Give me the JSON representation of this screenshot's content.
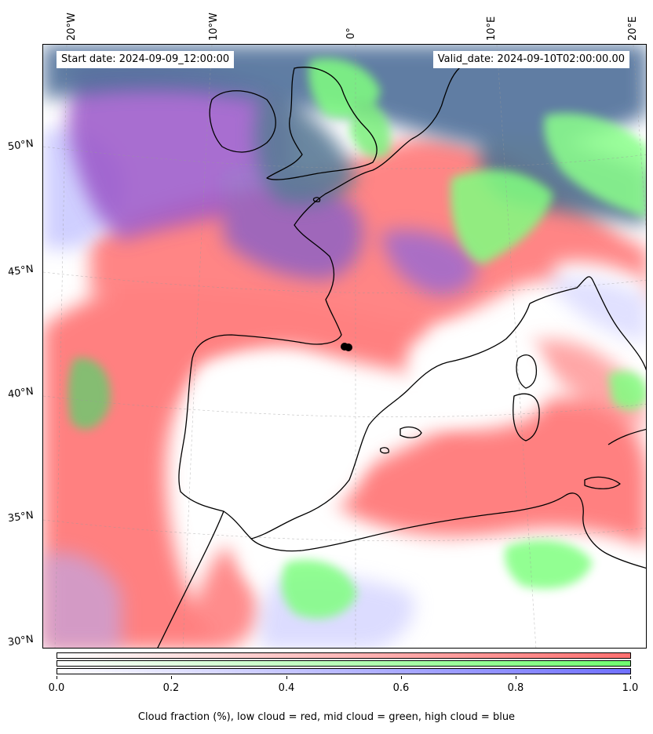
{
  "header": {
    "start_date": "Start date: 2024-09-09_12:00:00",
    "valid_date": "Valid_date: 2024-09-10T02:00:00.00"
  },
  "longitude_labels": [
    "20°W",
    "10°W",
    "0°",
    "10°E",
    "20°E"
  ],
  "latitude_labels": [
    "50°N",
    "45°N",
    "40°N",
    "35°N",
    "30°N"
  ],
  "colorbar": {
    "ticks": [
      "0.0",
      "0.2",
      "0.4",
      "0.6",
      "0.8",
      "1.0"
    ],
    "caption": "Cloud fraction (%), low cloud = red, mid cloud = green, high cloud = blue",
    "colors": {
      "low": "#ff7070",
      "mid": "#70ff70",
      "high": "#7070ff"
    }
  },
  "layers": {
    "low_cloud_color": "#ff7f7f",
    "mid_cloud_color": "#7fff7f",
    "high_cloud_color": "#8080ff",
    "overlap_purple": "#9a55c8",
    "overlap_slate": "#4f6f95"
  },
  "markers": [
    {
      "name": "location-marker",
      "lat": 41.9,
      "lon": 0.5
    }
  ]
}
